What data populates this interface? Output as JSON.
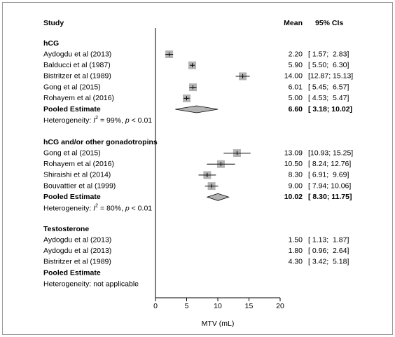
{
  "chart_data": {
    "type": "forest",
    "headers": {
      "study": "Study",
      "mean": "Mean",
      "ci": "95% CIs"
    },
    "xlabel": "MTV (mL)",
    "xlim": [
      0,
      20
    ],
    "xticks": [
      0,
      5,
      10,
      15,
      20
    ],
    "marker_color": "#b3b3b3",
    "diamond_color": "#b3b3b3",
    "groups": [
      {
        "name": "hCG",
        "markers": true,
        "studies": [
          "Aydogdu et al (2013)",
          "Balducci et al (1987)",
          "Bistritzer et al (1989)",
          "Gong et al (2015)",
          "Rohayem et al (2016)"
        ],
        "values": [
          2.2,
          5.9,
          14,
          6.01,
          5
        ],
        "value_labels": [
          "2.20",
          "5.90",
          "14.00",
          "6.01",
          "5.00"
        ],
        "lower": [
          1.57,
          5.5,
          12.87,
          5.45,
          4.53
        ],
        "upper": [
          2.83,
          6.3,
          15.13,
          6.57,
          5.47
        ],
        "ci_labels": [
          "[ 1.57;  2.83]",
          "[ 5.50;  6.30]",
          "[12.87; 15.13]",
          "[ 5.45;  6.57]",
          "[ 4.53;  5.47]"
        ],
        "pooled": {
          "label": "Pooled Estimate",
          "value": 6.6,
          "value_label": "6.60",
          "lower": 3.18,
          "upper": 10.02,
          "ci_label": "[ 3.18; 10.02]"
        },
        "heterogeneity": [
          "Heterogeneity: ",
          "I",
          "2",
          " = 99%, ",
          "p",
          " < 0.01"
        ]
      },
      {
        "name": "hCG and/or other gonadotropins",
        "markers": true,
        "studies": [
          "Gong et al (2015)",
          "Rohayem et al (2016)",
          "Shiraishi et al (2014)",
          "Bouvattier et al (1999)"
        ],
        "values": [
          13.09,
          10.5,
          8.3,
          9
        ],
        "value_labels": [
          "13.09",
          "10.50",
          "8.30",
          "9.00"
        ],
        "lower": [
          10.93,
          8.24,
          6.91,
          7.94
        ],
        "upper": [
          15.25,
          12.76,
          9.69,
          10.06
        ],
        "ci_labels": [
          "[10.93; 15.25]",
          "[ 8.24; 12.76]",
          "[ 6.91;  9.69]",
          "[ 7.94; 10.06]"
        ],
        "pooled": {
          "label": "Pooled Estimate",
          "value": 10.02,
          "value_label": "10.02",
          "lower": 8.3,
          "upper": 11.75,
          "ci_label": "[ 8.30; 11.75]"
        },
        "heterogeneity": [
          "Heterogeneity: ",
          "I",
          "2",
          " = 80%, ",
          "p",
          " < 0.01"
        ]
      },
      {
        "name": "Testosterone",
        "markers": false,
        "studies": [
          "Aydogdu et al (2013)",
          "Aydogdu et al (2013)",
          "Bistritzer et al (1989)"
        ],
        "values": [
          1.5,
          1.8,
          4.3
        ],
        "value_labels": [
          "1.50",
          "1.80",
          "4.30"
        ],
        "lower": [
          1.13,
          0.96,
          3.42
        ],
        "upper": [
          1.87,
          2.64,
          5.18
        ],
        "ci_labels": [
          "[ 1.13;  1.87]",
          "[ 0.96;  2.64]",
          "[ 3.42;  5.18]"
        ],
        "pooled": {
          "label": "Pooled Estimate"
        },
        "heterogeneity": [
          "Heterogeneity: not applicable"
        ]
      }
    ]
  }
}
